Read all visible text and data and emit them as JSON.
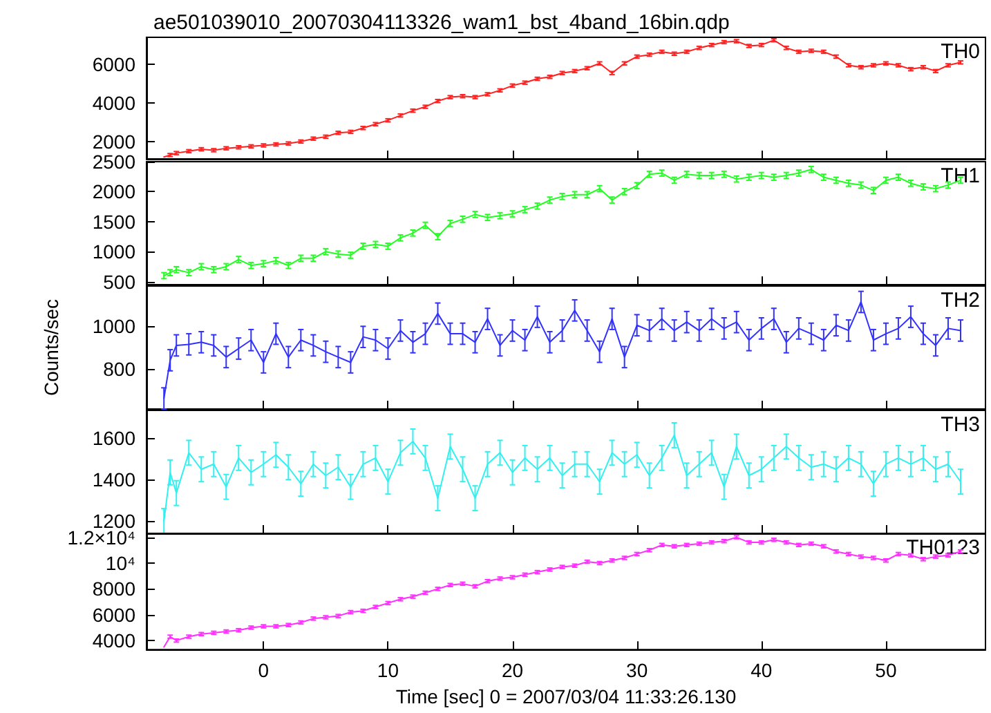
{
  "chart_data": [
    {
      "type": "line",
      "title": "ae501039010_20070304113326_wam1_bst_4band_16bin.qdp",
      "marker": "none",
      "line_style": "solid",
      "tick_labels": "y",
      "x": [
        -8,
        -7.5,
        -7,
        -6,
        -5,
        -4,
        -3,
        -2,
        -1,
        0,
        1,
        2,
        3,
        4,
        5,
        6,
        7,
        8,
        9,
        10,
        11,
        12,
        13,
        14,
        15,
        16,
        17,
        18,
        19,
        20,
        21,
        22,
        23,
        24,
        25,
        26,
        27,
        28,
        29,
        30,
        31,
        32,
        33,
        34,
        35,
        36,
        37,
        38,
        39,
        40,
        41,
        42,
        43,
        44,
        45,
        46,
        47,
        48,
        49,
        50,
        51,
        52,
        53,
        54,
        55,
        56
      ],
      "xlim": [
        -9.4,
        58
      ],
      "xticks": [
        0,
        10,
        20,
        30,
        40,
        50
      ],
      "ylim": [
        1100,
        7400
      ],
      "yticks": [
        2000,
        4000,
        6000
      ],
      "series": [
        {
          "name": "TH0",
          "color": "#ff2020",
          "values": [
            1200,
            1300,
            1400,
            1500,
            1600,
            1550,
            1650,
            1700,
            1750,
            1800,
            1850,
            1900,
            2000,
            2150,
            2250,
            2450,
            2500,
            2700,
            2900,
            3100,
            3350,
            3600,
            3800,
            4100,
            4300,
            4350,
            4300,
            4450,
            4650,
            4900,
            5050,
            5250,
            5350,
            5550,
            5650,
            5800,
            6050,
            5550,
            6050,
            6400,
            6500,
            6650,
            6550,
            6650,
            6850,
            7000,
            7150,
            7200,
            6950,
            7000,
            7250,
            6850,
            6650,
            6700,
            6650,
            6400,
            5950,
            5850,
            5950,
            6050,
            5950,
            5750,
            5850,
            5650,
            5950,
            6100
          ],
          "errors": [
            null,
            80,
            80,
            80,
            80,
            80,
            80,
            80,
            80,
            80,
            80,
            80,
            80,
            80,
            80,
            80,
            80,
            80,
            80,
            80,
            80,
            80,
            80,
            80,
            80,
            80,
            80,
            80,
            80,
            80,
            80,
            80,
            80,
            80,
            80,
            80,
            80,
            80,
            80,
            80,
            80,
            80,
            80,
            80,
            80,
            80,
            80,
            80,
            80,
            80,
            80,
            80,
            80,
            80,
            80,
            80,
            80,
            80,
            80,
            80,
            80,
            80,
            80,
            80,
            80,
            80
          ]
        }
      ]
    },
    {
      "type": "line",
      "marker": "none",
      "line_style": "solid",
      "tick_labels": "y",
      "x": [
        -8,
        -7.5,
        -7,
        -6,
        -5,
        -4,
        -3,
        -2,
        -1,
        0,
        1,
        2,
        3,
        4,
        5,
        6,
        7,
        8,
        9,
        10,
        11,
        12,
        13,
        14,
        15,
        16,
        17,
        18,
        19,
        20,
        21,
        22,
        23,
        24,
        25,
        26,
        27,
        28,
        29,
        30,
        31,
        32,
        33,
        34,
        35,
        36,
        37,
        38,
        39,
        40,
        41,
        42,
        43,
        44,
        45,
        46,
        47,
        48,
        49,
        50,
        51,
        52,
        53,
        54,
        55,
        56
      ],
      "xlim": [
        -9.4,
        58
      ],
      "xticks": [
        0,
        10,
        20,
        30,
        40,
        50
      ],
      "ylim": [
        450,
        2500
      ],
      "yticks": [
        500,
        1000,
        1500,
        2000,
        2500
      ],
      "series": [
        {
          "name": "TH1",
          "color": "#20ff20",
          "values": [
            600,
            650,
            700,
            650,
            750,
            700,
            750,
            870,
            770,
            800,
            850,
            770,
            890,
            890,
            1000,
            960,
            940,
            1090,
            1120,
            1090,
            1230,
            1310,
            1440,
            1250,
            1470,
            1540,
            1620,
            1570,
            1600,
            1630,
            1700,
            1760,
            1860,
            1920,
            1950,
            1950,
            2050,
            1860,
            2000,
            2100,
            2290,
            2310,
            2190,
            2290,
            2270,
            2270,
            2290,
            2210,
            2240,
            2270,
            2240,
            2270,
            2310,
            2370,
            2240,
            2190,
            2140,
            2110,
            2020,
            2190,
            2240,
            2140,
            2080,
            2050,
            2110,
            2190
          ],
          "errors": [
            50,
            50,
            50,
            50,
            50,
            50,
            50,
            50,
            50,
            50,
            50,
            50,
            50,
            50,
            50,
            50,
            50,
            50,
            50,
            50,
            50,
            50,
            50,
            50,
            50,
            50,
            50,
            50,
            50,
            50,
            50,
            50,
            50,
            50,
            50,
            50,
            50,
            50,
            50,
            50,
            50,
            50,
            50,
            50,
            50,
            50,
            50,
            50,
            50,
            50,
            50,
            50,
            50,
            50,
            50,
            50,
            50,
            50,
            50,
            50,
            50,
            50,
            50,
            50,
            50,
            50
          ]
        }
      ]
    },
    {
      "type": "line",
      "marker": "none",
      "line_style": "solid",
      "tick_labels": "y",
      "ylabel": "Counts/sec",
      "x": [
        -8,
        -7.5,
        -7,
        -6,
        -5,
        -4,
        -3,
        -2,
        -1,
        0,
        1,
        2,
        3,
        4,
        5,
        6,
        7,
        8,
        9,
        10,
        11,
        12,
        13,
        14,
        15,
        16,
        17,
        18,
        19,
        20,
        21,
        22,
        23,
        24,
        25,
        26,
        27,
        28,
        29,
        30,
        31,
        32,
        33,
        34,
        35,
        36,
        37,
        38,
        39,
        40,
        41,
        42,
        43,
        44,
        45,
        46,
        47,
        48,
        49,
        50,
        51,
        52,
        53,
        54,
        55,
        56
      ],
      "xlim": [
        -9.4,
        58
      ],
      "xticks": [
        0,
        10,
        20,
        30,
        40,
        50
      ],
      "ylim": [
        610,
        1190
      ],
      "yticks": [
        800,
        1000
      ],
      "series": [
        {
          "name": "TH2",
          "color": "#3030ff",
          "values": [
            660,
            840,
            910,
            915,
            925,
            910,
            855,
            895,
            935,
            830,
            965,
            855,
            935,
            910,
            880,
            855,
            830,
            950,
            935,
            895,
            980,
            925,
            965,
            1060,
            965,
            965,
            925,
            1035,
            910,
            980,
            935,
            1045,
            925,
            980,
            1075,
            980,
            880,
            1035,
            855,
            1005,
            980,
            1035,
            980,
            1020,
            980,
            1035,
            990,
            1020,
            935,
            990,
            1035,
            925,
            990,
            965,
            935,
            1005,
            980,
            1115,
            935,
            965,
            990,
            1045,
            965,
            910,
            990,
            980
          ],
          "errors": [
            50,
            50,
            50,
            50,
            50,
            50,
            50,
            50,
            50,
            50,
            50,
            50,
            50,
            50,
            50,
            50,
            50,
            50,
            50,
            50,
            50,
            50,
            50,
            50,
            50,
            50,
            50,
            50,
            50,
            50,
            50,
            50,
            50,
            50,
            50,
            50,
            50,
            50,
            50,
            50,
            50,
            50,
            50,
            50,
            50,
            50,
            50,
            50,
            50,
            50,
            50,
            50,
            50,
            50,
            50,
            50,
            50,
            50,
            50,
            50,
            50,
            50,
            50,
            50,
            50,
            50
          ]
        }
      ]
    },
    {
      "type": "line",
      "marker": "none",
      "line_style": "solid",
      "tick_labels": "y",
      "x": [
        -8,
        -7.5,
        -7,
        -6,
        -5,
        -4,
        -3,
        -2,
        -1,
        0,
        1,
        2,
        3,
        4,
        5,
        6,
        7,
        8,
        9,
        10,
        11,
        12,
        13,
        14,
        15,
        16,
        17,
        18,
        19,
        20,
        21,
        22,
        23,
        24,
        25,
        26,
        27,
        28,
        29,
        30,
        31,
        32,
        33,
        34,
        35,
        36,
        37,
        38,
        39,
        40,
        41,
        42,
        43,
        44,
        45,
        46,
        47,
        48,
        49,
        50,
        51,
        52,
        53,
        54,
        55,
        56
      ],
      "xlim": [
        -9.4,
        58
      ],
      "xticks": [
        0,
        10,
        20,
        30,
        40,
        50
      ],
      "ylim": [
        1140,
        1735
      ],
      "yticks": [
        1200,
        1400,
        1600
      ],
      "series": [
        {
          "name": "TH3",
          "color": "#30f0f0",
          "values": [
            1200,
            1435,
            1335,
            1530,
            1450,
            1475,
            1365,
            1505,
            1435,
            1475,
            1520,
            1460,
            1380,
            1475,
            1420,
            1460,
            1365,
            1475,
            1505,
            1390,
            1530,
            1585,
            1505,
            1310,
            1560,
            1450,
            1310,
            1475,
            1530,
            1435,
            1505,
            1450,
            1505,
            1420,
            1475,
            1475,
            1390,
            1530,
            1475,
            1520,
            1420,
            1505,
            1615,
            1420,
            1475,
            1530,
            1365,
            1560,
            1420,
            1450,
            1505,
            1560,
            1505,
            1460,
            1475,
            1450,
            1505,
            1475,
            1380,
            1475,
            1505,
            1475,
            1505,
            1450,
            1475,
            1390
          ],
          "errors": [
            60,
            60,
            60,
            60,
            60,
            60,
            60,
            60,
            60,
            60,
            60,
            60,
            60,
            60,
            60,
            60,
            60,
            60,
            60,
            60,
            60,
            60,
            60,
            60,
            60,
            60,
            60,
            60,
            60,
            60,
            60,
            60,
            60,
            60,
            60,
            60,
            60,
            60,
            60,
            60,
            60,
            60,
            60,
            60,
            60,
            60,
            60,
            60,
            60,
            60,
            60,
            60,
            60,
            60,
            60,
            60,
            60,
            60,
            60,
            60,
            60,
            60,
            60,
            60,
            60,
            60
          ]
        }
      ]
    },
    {
      "type": "line",
      "marker": "none",
      "line_style": "solid",
      "xlabel": "Time [sec] 0 = 2007/03/04 11:33:26.130",
      "x": [
        -8,
        -7.5,
        -7,
        -6,
        -5,
        -4,
        -3,
        -2,
        -1,
        0,
        1,
        2,
        3,
        4,
        5,
        6,
        7,
        8,
        9,
        10,
        11,
        12,
        13,
        14,
        15,
        16,
        17,
        18,
        19,
        20,
        21,
        22,
        23,
        24,
        25,
        26,
        27,
        28,
        29,
        30,
        31,
        32,
        33,
        34,
        35,
        36,
        37,
        38,
        39,
        40,
        41,
        42,
        43,
        44,
        45,
        46,
        47,
        48,
        49,
        50,
        51,
        52,
        53,
        54,
        55,
        56
      ],
      "xlim": [
        -9.4,
        58
      ],
      "xticks": [
        0,
        10,
        20,
        30,
        40,
        50
      ],
      "ylim": [
        3300,
        12300
      ],
      "yticks": [
        4000,
        6000,
        8000,
        {
          "value": 10000,
          "label": "10⁴"
        },
        {
          "value": 12000,
          "label": "1.2×10⁴"
        }
      ],
      "series": [
        {
          "name": "TH0123",
          "color": "#ff30ff",
          "values": [
            3500,
            4300,
            4000,
            4300,
            4500,
            4600,
            4700,
            4800,
            5000,
            5100,
            5100,
            5200,
            5400,
            5700,
            5800,
            5900,
            6200,
            6300,
            6600,
            6900,
            7200,
            7400,
            7700,
            8000,
            8300,
            8400,
            8200,
            8600,
            8800,
            8900,
            9100,
            9300,
            9500,
            9700,
            9800,
            10100,
            10000,
            10200,
            10400,
            10700,
            11000,
            11400,
            11300,
            11400,
            11500,
            11600,
            11700,
            12000,
            11600,
            11600,
            11800,
            11600,
            11400,
            11500,
            11300,
            10900,
            10700,
            10500,
            10400,
            10200,
            10700,
            10600,
            10300,
            10500,
            10600,
            10900
          ],
          "errors": [
            null,
            120,
            120,
            120,
            120,
            120,
            120,
            120,
            120,
            120,
            120,
            120,
            120,
            120,
            120,
            120,
            120,
            120,
            120,
            120,
            120,
            120,
            120,
            120,
            120,
            120,
            120,
            120,
            120,
            120,
            120,
            120,
            120,
            120,
            120,
            120,
            120,
            120,
            120,
            120,
            120,
            120,
            120,
            120,
            120,
            120,
            120,
            120,
            120,
            120,
            120,
            120,
            120,
            120,
            120,
            120,
            120,
            120,
            120,
            120,
            120,
            120,
            120,
            120,
            120,
            120
          ]
        }
      ]
    }
  ]
}
